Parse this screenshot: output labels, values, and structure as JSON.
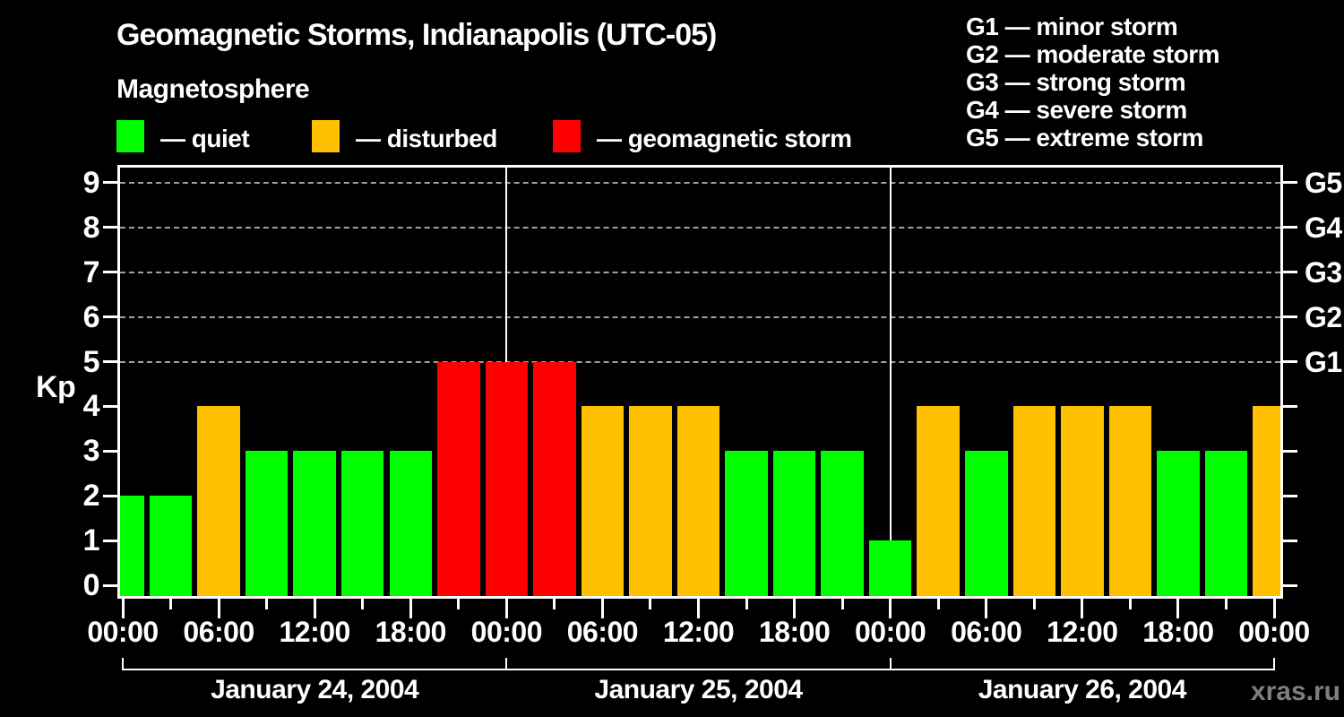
{
  "header": {
    "title": "Geomagnetic Storms, Indianapolis (UTC-05)",
    "subtitle": "Magnetosphere"
  },
  "kp_legend": {
    "items": [
      {
        "name": "quiet",
        "label": "— quiet",
        "color": "#00ff00"
      },
      {
        "name": "disturbed",
        "label": "— disturbed",
        "color": "#ffc000"
      },
      {
        "name": "storm",
        "label": "— geomagnetic storm",
        "color": "#ff0000"
      }
    ]
  },
  "g_legend": {
    "items": [
      "G1 — minor storm",
      "G2 — moderate storm",
      "G3 — strong storm",
      "G4 — severe storm",
      "G5 — extreme storm"
    ]
  },
  "watermark": "xras.ru",
  "chart_data": {
    "type": "bar",
    "title": "Geomagnetic Storms, Indianapolis (UTC-05)",
    "xlabel": "",
    "ylabel": "Kp",
    "ylim": [
      0,
      9
    ],
    "yticks": [
      0,
      1,
      2,
      3,
      4,
      5,
      6,
      7,
      8,
      9
    ],
    "grid_levels": [
      5,
      6,
      7,
      8,
      9
    ],
    "grid_on": true,
    "legend_position": "top",
    "right_axis_labels": [
      {
        "kp": 5,
        "label": "G1"
      },
      {
        "kp": 6,
        "label": "G2"
      },
      {
        "kp": 7,
        "label": "G3"
      },
      {
        "kp": 8,
        "label": "G4"
      },
      {
        "kp": 9,
        "label": "G5"
      }
    ],
    "x_range_hours": [
      0,
      72
    ],
    "x_tick_step_hours": 3,
    "x_label_step_hours": 6,
    "x_tick_labels": [
      "00:00",
      "06:00",
      "12:00",
      "18:00",
      "00:00",
      "06:00",
      "12:00",
      "18:00",
      "00:00",
      "06:00",
      "12:00",
      "18:00",
      "00:00"
    ],
    "day_dividers_hours": [
      24,
      48
    ],
    "days": [
      {
        "label": "January 24, 2004",
        "start_hour": 0,
        "end_hour": 24
      },
      {
        "label": "January 25, 2004",
        "start_hour": 24,
        "end_hour": 48
      },
      {
        "label": "January 26, 2004",
        "start_hour": 48,
        "end_hour": 72
      }
    ],
    "colors": {
      "quiet": "#00ff00",
      "disturbed": "#ffc000",
      "storm": "#ff0000"
    },
    "series": [
      {
        "hour": 0,
        "time": "00:00",
        "kp": 2,
        "state": "quiet"
      },
      {
        "hour": 3,
        "time": "03:00",
        "kp": 2,
        "state": "quiet"
      },
      {
        "hour": 6,
        "time": "06:00",
        "kp": 4,
        "state": "disturbed"
      },
      {
        "hour": 9,
        "time": "09:00",
        "kp": 3,
        "state": "quiet"
      },
      {
        "hour": 12,
        "time": "12:00",
        "kp": 3,
        "state": "quiet"
      },
      {
        "hour": 15,
        "time": "15:00",
        "kp": 3,
        "state": "quiet"
      },
      {
        "hour": 18,
        "time": "18:00",
        "kp": 3,
        "state": "quiet"
      },
      {
        "hour": 21,
        "time": "21:00",
        "kp": 5,
        "state": "storm"
      },
      {
        "hour": 24,
        "time": "00:00",
        "kp": 5,
        "state": "storm"
      },
      {
        "hour": 27,
        "time": "03:00",
        "kp": 5,
        "state": "storm"
      },
      {
        "hour": 30,
        "time": "06:00",
        "kp": 4,
        "state": "disturbed"
      },
      {
        "hour": 33,
        "time": "09:00",
        "kp": 4,
        "state": "disturbed"
      },
      {
        "hour": 36,
        "time": "12:00",
        "kp": 4,
        "state": "disturbed"
      },
      {
        "hour": 39,
        "time": "15:00",
        "kp": 3,
        "state": "quiet"
      },
      {
        "hour": 42,
        "time": "18:00",
        "kp": 3,
        "state": "quiet"
      },
      {
        "hour": 45,
        "time": "21:00",
        "kp": 3,
        "state": "quiet"
      },
      {
        "hour": 48,
        "time": "00:00",
        "kp": 1,
        "state": "quiet"
      },
      {
        "hour": 51,
        "time": "03:00",
        "kp": 4,
        "state": "disturbed"
      },
      {
        "hour": 54,
        "time": "06:00",
        "kp": 3,
        "state": "quiet"
      },
      {
        "hour": 57,
        "time": "09:00",
        "kp": 4,
        "state": "disturbed"
      },
      {
        "hour": 60,
        "time": "12:00",
        "kp": 4,
        "state": "disturbed"
      },
      {
        "hour": 63,
        "time": "15:00",
        "kp": 4,
        "state": "disturbed"
      },
      {
        "hour": 66,
        "time": "18:00",
        "kp": 3,
        "state": "quiet"
      },
      {
        "hour": 69,
        "time": "21:00",
        "kp": 3,
        "state": "quiet"
      },
      {
        "hour": 72,
        "time": "00:00",
        "kp": 4,
        "state": "disturbed"
      }
    ]
  }
}
